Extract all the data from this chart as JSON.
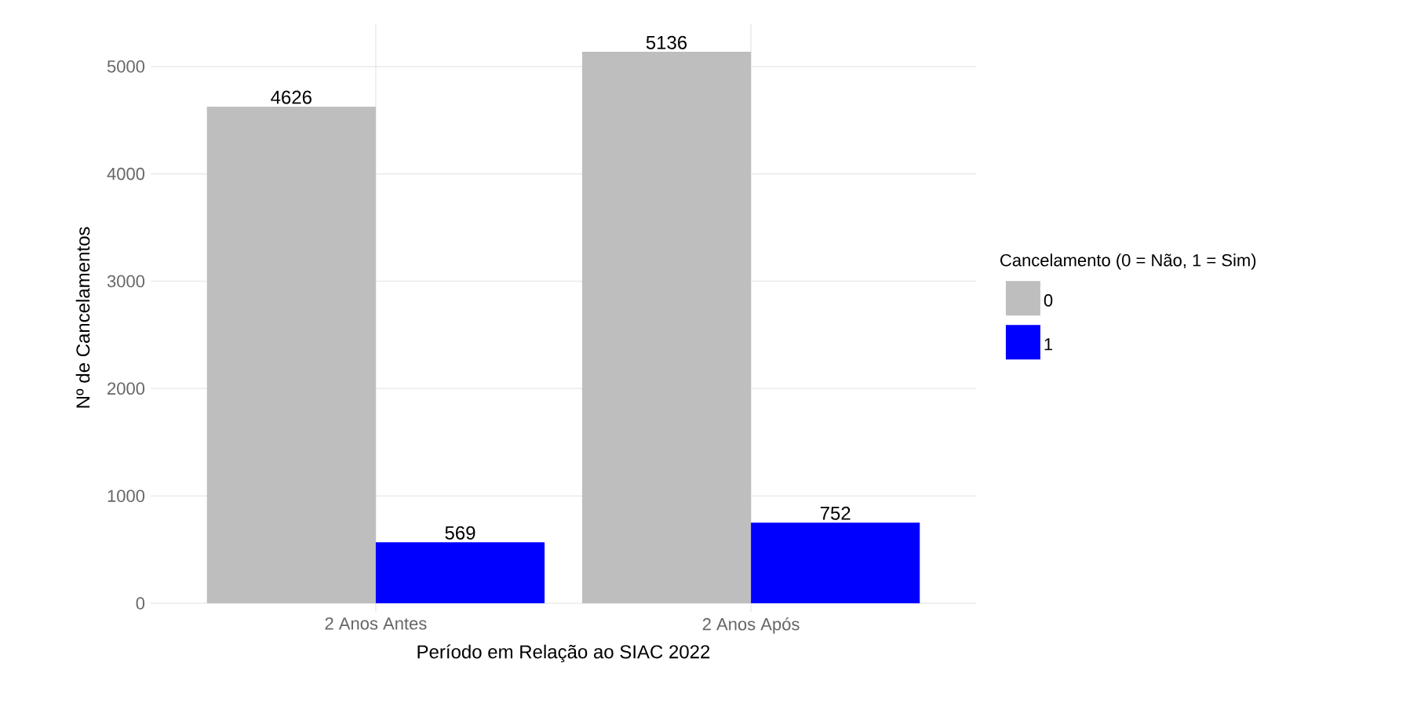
{
  "chart_data": {
    "type": "bar",
    "xlabel": "Período em Relação ao SIAC 2022",
    "ylabel": "Nº de Cancelamentos",
    "legend_title": "Cancelamento (0 = Não, 1 = Sim)",
    "categories": [
      "2 Anos Antes",
      "2 Anos Após"
    ],
    "series": [
      {
        "name": "0",
        "color": "#bebebe",
        "values": [
          4626,
          5136
        ]
      },
      {
        "name": "1",
        "color": "#0000ff",
        "values": [
          569,
          752
        ]
      }
    ],
    "ylim": [
      -80,
      5400
    ],
    "yticks": [
      0,
      1000,
      2000,
      3000,
      4000,
      5000
    ],
    "grid": true,
    "legend": "right",
    "data_labels": true
  }
}
